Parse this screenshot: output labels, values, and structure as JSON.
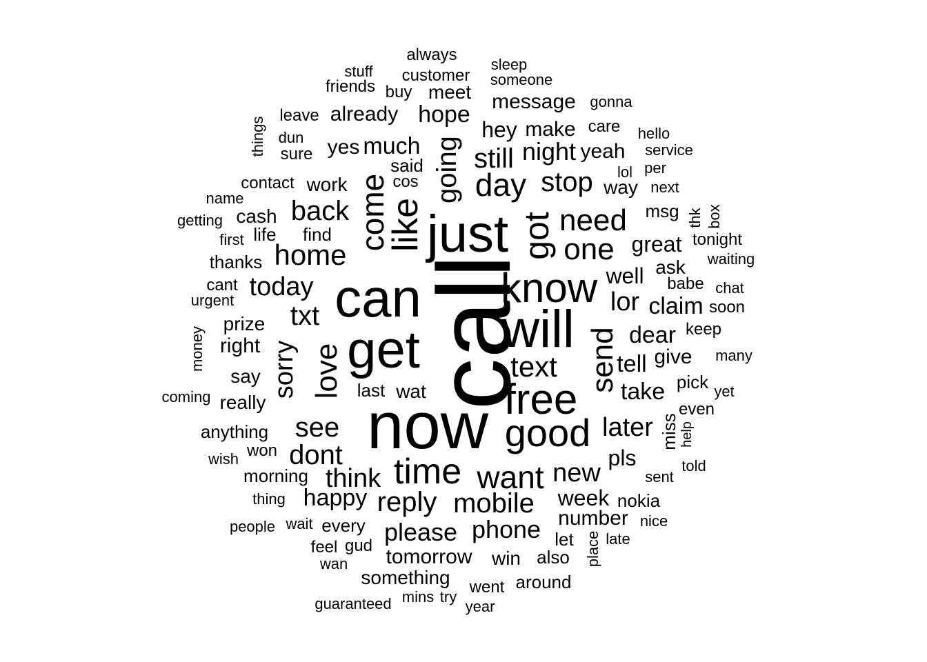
{
  "text_color": "#000000",
  "background_color": "#ffffff",
  "words": [
    {
      "text": "call",
      "weight": 1.0,
      "vertical": true
    },
    {
      "text": "now",
      "weight": 0.82,
      "vertical": false
    },
    {
      "text": "can",
      "weight": 0.62,
      "vertical": false
    },
    {
      "text": "get",
      "weight": 0.6,
      "vertical": false
    },
    {
      "text": "just",
      "weight": 0.6,
      "vertical": false
    },
    {
      "text": "will",
      "weight": 0.6,
      "vertical": false
    },
    {
      "text": "free",
      "weight": 0.5,
      "vertical": false
    },
    {
      "text": "know",
      "weight": 0.5,
      "vertical": false
    },
    {
      "text": "good",
      "weight": 0.46,
      "vertical": false
    },
    {
      "text": "like",
      "weight": 0.46,
      "vertical": true
    },
    {
      "text": "got",
      "weight": 0.44,
      "vertical": true
    },
    {
      "text": "time",
      "weight": 0.44,
      "vertical": false
    },
    {
      "text": "come",
      "weight": 0.4,
      "vertical": true
    },
    {
      "text": "want",
      "weight": 0.38,
      "vertical": false
    },
    {
      "text": "day",
      "weight": 0.38,
      "vertical": false
    },
    {
      "text": "love",
      "weight": 0.38,
      "vertical": true
    },
    {
      "text": "send",
      "weight": 0.38,
      "vertical": true
    },
    {
      "text": "going",
      "weight": 0.34,
      "vertical": true
    },
    {
      "text": "need",
      "weight": 0.33,
      "vertical": false
    },
    {
      "text": "one",
      "weight": 0.33,
      "vertical": false
    },
    {
      "text": "home",
      "weight": 0.32,
      "vertical": false
    },
    {
      "text": "back",
      "weight": 0.32,
      "vertical": false
    },
    {
      "text": "sorry",
      "weight": 0.32,
      "vertical": true
    },
    {
      "text": "text",
      "weight": 0.32,
      "vertical": false
    },
    {
      "text": "reply",
      "weight": 0.32,
      "vertical": false
    },
    {
      "text": "mobile",
      "weight": 0.31,
      "vertical": false
    },
    {
      "text": "stop",
      "weight": 0.31,
      "vertical": false
    },
    {
      "text": "txt",
      "weight": 0.31,
      "vertical": false
    },
    {
      "text": "please",
      "weight": 0.3,
      "vertical": false
    },
    {
      "text": "see",
      "weight": 0.3,
      "vertical": false
    },
    {
      "text": "dont",
      "weight": 0.3,
      "vertical": false
    },
    {
      "text": "still",
      "weight": 0.3,
      "vertical": false
    },
    {
      "text": "phone",
      "weight": 0.29,
      "vertical": false
    },
    {
      "text": "think",
      "weight": 0.29,
      "vertical": false
    },
    {
      "text": "today",
      "weight": 0.29,
      "vertical": false
    },
    {
      "text": "new",
      "weight": 0.28,
      "vertical": false
    },
    {
      "text": "later",
      "weight": 0.28,
      "vertical": false
    },
    {
      "text": "lor",
      "weight": 0.28,
      "vertical": false
    },
    {
      "text": "tell",
      "weight": 0.27,
      "vertical": false
    },
    {
      "text": "night",
      "weight": 0.27,
      "vertical": false
    },
    {
      "text": "happy",
      "weight": 0.27,
      "vertical": false
    },
    {
      "text": "much",
      "weight": 0.26,
      "vertical": false
    },
    {
      "text": "hope",
      "weight": 0.26,
      "vertical": false
    },
    {
      "text": "well",
      "weight": 0.26,
      "vertical": false
    },
    {
      "text": "claim",
      "weight": 0.26,
      "vertical": false
    },
    {
      "text": "week",
      "weight": 0.26,
      "vertical": false
    },
    {
      "text": "great",
      "weight": 0.25,
      "vertical": false
    },
    {
      "text": "dear",
      "weight": 0.25,
      "vertical": false
    },
    {
      "text": "hey",
      "weight": 0.25,
      "vertical": false
    },
    {
      "text": "take",
      "weight": 0.25,
      "vertical": false
    },
    {
      "text": "pls",
      "weight": 0.25,
      "vertical": false
    },
    {
      "text": "make",
      "weight": 0.24,
      "vertical": false
    },
    {
      "text": "tomorrow",
      "weight": 0.24,
      "vertical": false
    },
    {
      "text": "number",
      "weight": 0.24,
      "vertical": false
    },
    {
      "text": "yes",
      "weight": 0.24,
      "vertical": false
    },
    {
      "text": "yeah",
      "weight": 0.24,
      "vertical": false
    },
    {
      "text": "give",
      "weight": 0.24,
      "vertical": false
    },
    {
      "text": "already",
      "weight": 0.24,
      "vertical": false
    },
    {
      "text": "message",
      "weight": 0.24,
      "vertical": false
    },
    {
      "text": "say",
      "weight": 0.24,
      "vertical": false
    },
    {
      "text": "work",
      "weight": 0.24,
      "vertical": false
    },
    {
      "text": "way",
      "weight": 0.24,
      "vertical": false
    },
    {
      "text": "right",
      "weight": 0.24,
      "vertical": false
    },
    {
      "text": "prize",
      "weight": 0.23,
      "vertical": false
    },
    {
      "text": "really",
      "weight": 0.23,
      "vertical": false
    },
    {
      "text": "something",
      "weight": 0.23,
      "vertical": false
    },
    {
      "text": "meet",
      "weight": 0.23,
      "vertical": false
    },
    {
      "text": "morning",
      "weight": 0.22,
      "vertical": false
    },
    {
      "text": "nokia",
      "weight": 0.22,
      "vertical": false
    },
    {
      "text": "wat",
      "weight": 0.22,
      "vertical": false
    },
    {
      "text": "cash",
      "weight": 0.22,
      "vertical": false
    },
    {
      "text": "ask",
      "weight": 0.22,
      "vertical": false
    },
    {
      "text": "anything",
      "weight": 0.22,
      "vertical": false
    },
    {
      "text": "win",
      "weight": 0.22,
      "vertical": false
    },
    {
      "text": "also",
      "weight": 0.22,
      "vertical": false
    },
    {
      "text": "let",
      "weight": 0.22,
      "vertical": false
    },
    {
      "text": "find",
      "weight": 0.21,
      "vertical": false
    },
    {
      "text": "thanks",
      "weight": 0.21,
      "vertical": false
    },
    {
      "text": "msg",
      "weight": 0.21,
      "vertical": false
    },
    {
      "text": "said",
      "weight": 0.21,
      "vertical": false
    },
    {
      "text": "every",
      "weight": 0.21,
      "vertical": false
    },
    {
      "text": "last",
      "weight": 0.21,
      "vertical": false
    },
    {
      "text": "life",
      "weight": 0.21,
      "vertical": false
    },
    {
      "text": "pick",
      "weight": 0.21,
      "vertical": false
    },
    {
      "text": "miss",
      "weight": 0.21,
      "vertical": true
    },
    {
      "text": "around",
      "weight": 0.21,
      "vertical": false
    },
    {
      "text": "gud",
      "weight": 0.2,
      "vertical": false
    },
    {
      "text": "customer",
      "weight": 0.2,
      "vertical": false
    },
    {
      "text": "babe",
      "weight": 0.2,
      "vertical": false
    },
    {
      "text": "contact",
      "weight": 0.2,
      "vertical": false
    },
    {
      "text": "cant",
      "weight": 0.2,
      "vertical": false
    },
    {
      "text": "sure",
      "weight": 0.2,
      "vertical": false
    },
    {
      "text": "keep",
      "weight": 0.2,
      "vertical": false
    },
    {
      "text": "tonight",
      "weight": 0.2,
      "vertical": false
    },
    {
      "text": "feel",
      "weight": 0.2,
      "vertical": false
    },
    {
      "text": "soon",
      "weight": 0.2,
      "vertical": false
    },
    {
      "text": "won",
      "weight": 0.2,
      "vertical": false
    },
    {
      "text": "care",
      "weight": 0.2,
      "vertical": false
    },
    {
      "text": "even",
      "weight": 0.2,
      "vertical": false
    },
    {
      "text": "went",
      "weight": 0.2,
      "vertical": false
    },
    {
      "text": "cos",
      "weight": 0.2,
      "vertical": false
    },
    {
      "text": "always",
      "weight": 0.2,
      "vertical": false
    },
    {
      "text": "leave",
      "weight": 0.19,
      "vertical": false
    },
    {
      "text": "stuff",
      "weight": 0.19,
      "vertical": false
    },
    {
      "text": "sleep",
      "weight": 0.19,
      "vertical": false
    },
    {
      "text": "someone",
      "weight": 0.19,
      "vertical": false
    },
    {
      "text": "friends",
      "weight": 0.19,
      "vertical": false
    },
    {
      "text": "buy",
      "weight": 0.19,
      "vertical": false
    },
    {
      "text": "gonna",
      "weight": 0.19,
      "vertical": false
    },
    {
      "text": "hello",
      "weight": 0.19,
      "vertical": false
    },
    {
      "text": "service",
      "weight": 0.19,
      "vertical": false
    },
    {
      "text": "dun",
      "weight": 0.19,
      "vertical": false
    },
    {
      "text": "per",
      "weight": 0.19,
      "vertical": false
    },
    {
      "text": "lol",
      "weight": 0.19,
      "vertical": false
    },
    {
      "text": "next",
      "weight": 0.19,
      "vertical": false
    },
    {
      "text": "name",
      "weight": 0.18,
      "vertical": false
    },
    {
      "text": "getting",
      "weight": 0.18,
      "vertical": false
    },
    {
      "text": "first",
      "weight": 0.18,
      "vertical": false
    },
    {
      "text": "things",
      "weight": 0.18,
      "vertical": true
    },
    {
      "text": "thk",
      "weight": 0.18,
      "vertical": true
    },
    {
      "text": "box",
      "weight": 0.18,
      "vertical": true
    },
    {
      "text": "waiting",
      "weight": 0.19,
      "vertical": false
    },
    {
      "text": "chat",
      "weight": 0.19,
      "vertical": false
    },
    {
      "text": "urgent",
      "weight": 0.19,
      "vertical": false
    },
    {
      "text": "money",
      "weight": 0.18,
      "vertical": true
    },
    {
      "text": "many",
      "weight": 0.19,
      "vertical": false
    },
    {
      "text": "coming",
      "weight": 0.18,
      "vertical": false
    },
    {
      "text": "yet",
      "weight": 0.18,
      "vertical": false
    },
    {
      "text": "help",
      "weight": 0.18,
      "vertical": true
    },
    {
      "text": "told",
      "weight": 0.18,
      "vertical": false
    },
    {
      "text": "sent",
      "weight": 0.18,
      "vertical": false
    },
    {
      "text": "wish",
      "weight": 0.18,
      "vertical": false
    },
    {
      "text": "thing",
      "weight": 0.19,
      "vertical": false
    },
    {
      "text": "nice",
      "weight": 0.19,
      "vertical": false
    },
    {
      "text": "people",
      "weight": 0.18,
      "vertical": false
    },
    {
      "text": "wait",
      "weight": 0.18,
      "vertical": false
    },
    {
      "text": "place",
      "weight": 0.19,
      "vertical": true
    },
    {
      "text": "late",
      "weight": 0.19,
      "vertical": false
    },
    {
      "text": "wan",
      "weight": 0.19,
      "vertical": false
    },
    {
      "text": "guaranteed",
      "weight": 0.18,
      "vertical": false
    },
    {
      "text": "mins",
      "weight": 0.18,
      "vertical": false
    },
    {
      "text": "try",
      "weight": 0.18,
      "vertical": false
    },
    {
      "text": "year",
      "weight": 0.18,
      "vertical": false
    }
  ]
}
